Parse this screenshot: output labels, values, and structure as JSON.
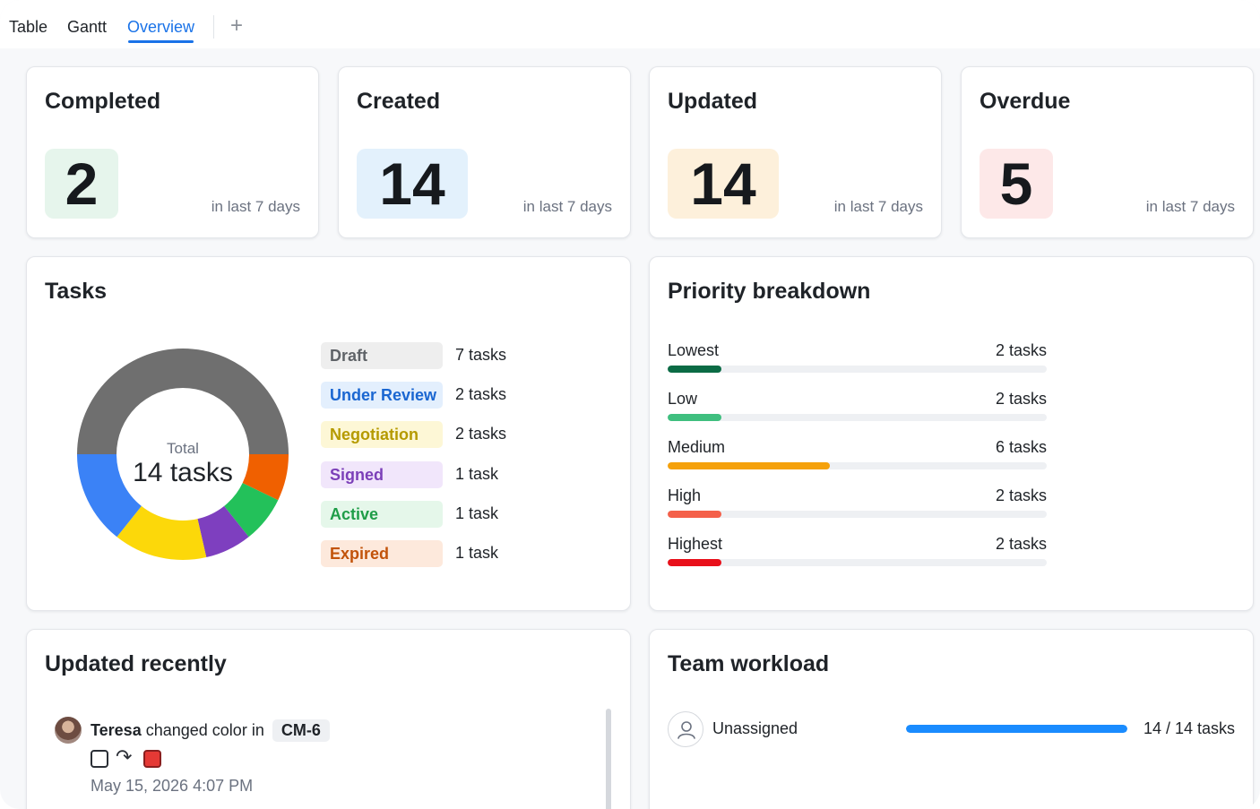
{
  "tabs": [
    {
      "label": "Table",
      "active": false
    },
    {
      "label": "Gantt",
      "active": false
    },
    {
      "label": "Overview",
      "active": true
    }
  ],
  "add_tab_icon": "plus-icon",
  "stats": [
    {
      "title": "Completed",
      "value": "2",
      "subtitle": "in last 7 days",
      "badge_color": "#e6f5ec"
    },
    {
      "title": "Created",
      "value": "14",
      "subtitle": "in last 7 days",
      "badge_color": "#e3f1fc"
    },
    {
      "title": "Updated",
      "value": "14",
      "subtitle": "in last 7 days",
      "badge_color": "#fdf0db"
    },
    {
      "title": "Overdue",
      "value": "5",
      "subtitle": "in last 7 days",
      "badge_color": "#fde8e8"
    }
  ],
  "tasks": {
    "title": "Tasks",
    "total_label": "Total",
    "total_value": "14 tasks",
    "status_counts": [
      {
        "label": "Draft",
        "count_text": "7 tasks",
        "count": 7,
        "color": "#6f6f6f",
        "pill_bg": "#eeeeee",
        "pill_fg": "#5f6368"
      },
      {
        "label": "Under Review",
        "count_text": "2 tasks",
        "count": 2,
        "color": "#3b82f6",
        "pill_bg": "#e3effd",
        "pill_fg": "#1a66d1"
      },
      {
        "label": "Negotiation",
        "count_text": "2 tasks",
        "count": 2,
        "color": "#fcd80a",
        "pill_bg": "#fdf7d6",
        "pill_fg": "#b59a00"
      },
      {
        "label": "Signed",
        "count_text": "1 task",
        "count": 1,
        "color": "#7e3fbf",
        "pill_bg": "#f1e6fb",
        "pill_fg": "#7b3fb8"
      },
      {
        "label": "Active",
        "count_text": "1 task",
        "count": 1,
        "color": "#23c15a",
        "pill_bg": "#e5f7ea",
        "pill_fg": "#1f9d48"
      },
      {
        "label": "Expired",
        "count_text": "1 task",
        "count": 1,
        "color": "#f06000",
        "pill_bg": "#fde9dc",
        "pill_fg": "#c2530a"
      }
    ],
    "donut_order": [
      "Draft",
      "Expired",
      "Active",
      "Signed",
      "Negotiation",
      "Under Review"
    ]
  },
  "priority": {
    "title": "Priority breakdown",
    "total": 14,
    "rows": [
      {
        "label": "Lowest",
        "count_text": "2 tasks",
        "count": 2,
        "color": "#0b6b45"
      },
      {
        "label": "Low",
        "count_text": "2 tasks",
        "count": 2,
        "color": "#3fbf7f"
      },
      {
        "label": "Medium",
        "count_text": "6 tasks",
        "count": 6,
        "color": "#f5a10b"
      },
      {
        "label": "High",
        "count_text": "2 tasks",
        "count": 2,
        "color": "#f4604a"
      },
      {
        "label": "Highest",
        "count_text": "2 tasks",
        "count": 2,
        "color": "#e8101a"
      }
    ]
  },
  "updated_recently": {
    "title": "Updated recently",
    "items": [
      {
        "user": "Teresa",
        "action": "changed color in",
        "key": "CM-6",
        "time": "May 15, 2026 4:07 PM",
        "color_from": "#ffffff",
        "color_to": "#e53935"
      }
    ]
  },
  "workload": {
    "title": "Team workload",
    "rows": [
      {
        "name": "Unassigned",
        "count_text": "14 / 14 tasks",
        "fraction": 1.0,
        "icon": "user-icon"
      }
    ]
  }
}
